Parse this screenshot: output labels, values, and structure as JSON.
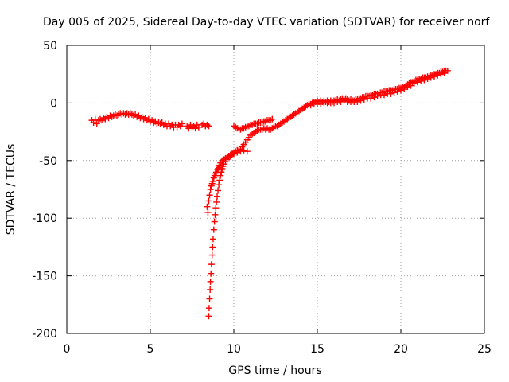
{
  "chart_data": {
    "type": "scatter",
    "title": "Day 005 of 2025, Sidereal Day-to-day VTEC variation (SDTVAR) for receiver norf",
    "xlabel": "GPS time / hours",
    "ylabel": "SDTVAR / TECUs",
    "xlim": [
      0,
      25
    ],
    "ylim": [
      -200,
      50
    ],
    "xticks": [
      0,
      5,
      10,
      15,
      20,
      25
    ],
    "yticks": [
      -200,
      -150,
      -100,
      -50,
      0,
      50
    ],
    "xtick_labels": [
      "0",
      "5",
      "10",
      "15",
      "20",
      "25"
    ],
    "ytick_labels": [
      "-200",
      "-150",
      "-100",
      "-50",
      "0",
      "50"
    ],
    "grid": true,
    "marker": "+",
    "color": "#ff0000",
    "series": [
      {
        "name": "SDTVAR",
        "points": [
          [
            1.5,
            -15
          ],
          [
            1.6,
            -17
          ],
          [
            1.7,
            -14
          ],
          [
            1.8,
            -18
          ],
          [
            1.9,
            -15
          ],
          [
            2.0,
            -14
          ],
          [
            2.1,
            -15
          ],
          [
            2.2,
            -13
          ],
          [
            2.3,
            -14
          ],
          [
            2.4,
            -12
          ],
          [
            2.5,
            -13
          ],
          [
            2.6,
            -11
          ],
          [
            2.7,
            -12
          ],
          [
            2.8,
            -11
          ],
          [
            2.9,
            -10
          ],
          [
            3.0,
            -11
          ],
          [
            3.1,
            -10
          ],
          [
            3.2,
            -9
          ],
          [
            3.3,
            -10
          ],
          [
            3.4,
            -9
          ],
          [
            3.5,
            -10
          ],
          [
            3.6,
            -9
          ],
          [
            3.7,
            -10
          ],
          [
            3.8,
            -9
          ],
          [
            3.9,
            -10
          ],
          [
            4.0,
            -11
          ],
          [
            4.1,
            -10
          ],
          [
            4.2,
            -12
          ],
          [
            4.3,
            -11
          ],
          [
            4.4,
            -13
          ],
          [
            4.5,
            -12
          ],
          [
            4.6,
            -14
          ],
          [
            4.7,
            -13
          ],
          [
            4.8,
            -15
          ],
          [
            4.9,
            -14
          ],
          [
            5.0,
            -16
          ],
          [
            5.1,
            -15
          ],
          [
            5.2,
            -17
          ],
          [
            5.3,
            -16
          ],
          [
            5.4,
            -18
          ],
          [
            5.5,
            -17
          ],
          [
            5.6,
            -18
          ],
          [
            5.7,
            -17
          ],
          [
            5.8,
            -19
          ],
          [
            5.9,
            -18
          ],
          [
            6.0,
            -20
          ],
          [
            6.1,
            -18
          ],
          [
            6.2,
            -20
          ],
          [
            6.3,
            -19
          ],
          [
            6.4,
            -21
          ],
          [
            6.5,
            -19
          ],
          [
            6.6,
            -21
          ],
          [
            6.7,
            -19
          ],
          [
            6.8,
            -20
          ],
          [
            6.9,
            -18
          ],
          [
            7.2,
            -20
          ],
          [
            7.3,
            -22
          ],
          [
            7.4,
            -19
          ],
          [
            7.5,
            -21
          ],
          [
            7.6,
            -20
          ],
          [
            7.7,
            -22
          ],
          [
            7.8,
            -19
          ],
          [
            7.9,
            -21
          ],
          [
            8.1,
            -19
          ],
          [
            8.2,
            -18
          ],
          [
            8.3,
            -20
          ],
          [
            8.4,
            -19
          ],
          [
            8.5,
            -20
          ],
          [
            8.4,
            -90
          ],
          [
            8.45,
            -95
          ],
          [
            8.5,
            -85
          ],
          [
            8.55,
            -80
          ],
          [
            8.6,
            -75
          ],
          [
            8.65,
            -72
          ],
          [
            8.7,
            -70
          ],
          [
            8.75,
            -68
          ],
          [
            8.8,
            -65
          ],
          [
            8.85,
            -63
          ],
          [
            8.9,
            -61
          ],
          [
            8.95,
            -60
          ],
          [
            9.0,
            -58
          ],
          [
            9.05,
            -57
          ],
          [
            9.1,
            -56
          ],
          [
            9.15,
            -54
          ],
          [
            9.2,
            -52
          ],
          [
            9.3,
            -50
          ],
          [
            9.4,
            -49
          ],
          [
            9.5,
            -48
          ],
          [
            9.6,
            -47
          ],
          [
            9.7,
            -46
          ],
          [
            9.8,
            -45
          ],
          [
            9.9,
            -44
          ],
          [
            10.0,
            -43
          ],
          [
            10.1,
            -42
          ],
          [
            10.2,
            -41
          ],
          [
            10.3,
            -41
          ],
          [
            10.4,
            -40
          ],
          [
            10.5,
            -38
          ],
          [
            10.6,
            -36
          ],
          [
            10.7,
            -34
          ],
          [
            10.8,
            -32
          ],
          [
            10.9,
            -30
          ],
          [
            11.0,
            -28
          ],
          [
            11.1,
            -27
          ],
          [
            11.2,
            -26
          ],
          [
            11.3,
            -25
          ],
          [
            11.4,
            -24
          ],
          [
            11.5,
            -23
          ],
          [
            11.6,
            -23
          ],
          [
            11.7,
            -23
          ],
          [
            11.8,
            -22
          ],
          [
            11.9,
            -23
          ],
          [
            12.0,
            -22
          ],
          [
            12.1,
            -23
          ],
          [
            12.2,
            -23
          ],
          [
            12.3,
            -22
          ],
          [
            8.5,
            -185
          ],
          [
            8.52,
            -178
          ],
          [
            8.55,
            -170
          ],
          [
            8.58,
            -162
          ],
          [
            8.6,
            -155
          ],
          [
            8.63,
            -148
          ],
          [
            8.66,
            -140
          ],
          [
            8.7,
            -132
          ],
          [
            8.73,
            -125
          ],
          [
            8.76,
            -118
          ],
          [
            8.8,
            -110
          ],
          [
            8.84,
            -103
          ],
          [
            8.88,
            -97
          ],
          [
            8.92,
            -91
          ],
          [
            8.96,
            -86
          ],
          [
            9.0,
            -81
          ],
          [
            9.05,
            -76
          ],
          [
            9.1,
            -71
          ],
          [
            9.15,
            -67
          ],
          [
            9.2,
            -63
          ],
          [
            9.25,
            -60
          ],
          [
            9.3,
            -57
          ],
          [
            9.35,
            -55
          ],
          [
            9.4,
            -53
          ],
          [
            9.5,
            -51
          ],
          [
            9.6,
            -49
          ],
          [
            9.7,
            -47
          ],
          [
            9.8,
            -46
          ],
          [
            9.9,
            -45
          ],
          [
            10.0,
            -44
          ],
          [
            10.2,
            -43
          ],
          [
            10.4,
            -42
          ],
          [
            10.6,
            -41
          ],
          [
            10.8,
            -42
          ],
          [
            10.0,
            -20
          ],
          [
            10.1,
            -21
          ],
          [
            10.2,
            -22
          ],
          [
            10.3,
            -22
          ],
          [
            10.4,
            -23
          ],
          [
            10.5,
            -22
          ],
          [
            10.6,
            -22
          ],
          [
            10.7,
            -21
          ],
          [
            10.8,
            -20
          ],
          [
            10.9,
            -20
          ],
          [
            11.0,
            -19
          ],
          [
            11.1,
            -19
          ],
          [
            11.2,
            -18
          ],
          [
            11.3,
            -18
          ],
          [
            11.4,
            -18
          ],
          [
            11.5,
            -17
          ],
          [
            11.6,
            -17
          ],
          [
            11.7,
            -17
          ],
          [
            11.8,
            -16
          ],
          [
            11.9,
            -16
          ],
          [
            12.0,
            -15
          ],
          [
            12.1,
            -15
          ],
          [
            12.2,
            -15
          ],
          [
            12.3,
            -14
          ],
          [
            12.4,
            -21
          ],
          [
            12.5,
            -20
          ],
          [
            12.6,
            -20
          ],
          [
            12.7,
            -19
          ],
          [
            12.8,
            -18
          ],
          [
            12.9,
            -17
          ],
          [
            13.0,
            -16
          ],
          [
            13.1,
            -15
          ],
          [
            13.2,
            -14
          ],
          [
            13.3,
            -13
          ],
          [
            13.4,
            -12
          ],
          [
            13.5,
            -11
          ],
          [
            13.6,
            -10
          ],
          [
            13.7,
            -9
          ],
          [
            13.8,
            -8
          ],
          [
            13.9,
            -7
          ],
          [
            14.0,
            -6
          ],
          [
            14.1,
            -5
          ],
          [
            14.2,
            -4
          ],
          [
            14.3,
            -3
          ],
          [
            14.4,
            -2
          ],
          [
            14.5,
            -1
          ],
          [
            14.6,
            -1
          ],
          [
            14.7,
            0
          ],
          [
            14.8,
            1
          ],
          [
            14.9,
            1
          ],
          [
            15.0,
            2
          ],
          [
            15.1,
            1
          ],
          [
            15.2,
            2
          ],
          [
            15.3,
            1
          ],
          [
            15.4,
            2
          ],
          [
            15.5,
            1
          ],
          [
            15.6,
            2
          ],
          [
            15.7,
            1
          ],
          [
            15.8,
            2
          ],
          [
            15.9,
            1
          ],
          [
            16.0,
            2
          ],
          [
            16.1,
            2
          ],
          [
            16.2,
            3
          ],
          [
            16.3,
            2
          ],
          [
            16.4,
            3
          ],
          [
            16.5,
            4
          ],
          [
            16.6,
            3
          ],
          [
            16.7,
            4
          ],
          [
            16.8,
            3
          ],
          [
            16.9,
            2
          ],
          [
            17.0,
            3
          ],
          [
            17.1,
            2
          ],
          [
            17.2,
            2
          ],
          [
            17.3,
            3
          ],
          [
            17.4,
            3
          ],
          [
            17.5,
            4
          ],
          [
            17.6,
            4
          ],
          [
            17.7,
            5
          ],
          [
            17.8,
            5
          ],
          [
            17.9,
            6
          ],
          [
            18.0,
            6
          ],
          [
            18.1,
            6
          ],
          [
            18.2,
            7
          ],
          [
            18.3,
            7
          ],
          [
            18.4,
            8
          ],
          [
            18.5,
            8
          ],
          [
            18.6,
            8
          ],
          [
            18.7,
            9
          ],
          [
            18.8,
            9
          ],
          [
            18.9,
            9
          ],
          [
            19.0,
            10
          ],
          [
            19.1,
            10
          ],
          [
            19.2,
            10
          ],
          [
            19.3,
            11
          ],
          [
            19.4,
            11
          ],
          [
            19.5,
            11
          ],
          [
            19.6,
            12
          ],
          [
            19.7,
            12
          ],
          [
            19.8,
            12
          ],
          [
            19.9,
            13
          ],
          [
            20.0,
            13
          ],
          [
            20.1,
            14
          ],
          [
            20.2,
            14
          ],
          [
            20.3,
            15
          ],
          [
            20.4,
            16
          ],
          [
            20.5,
            17
          ],
          [
            20.6,
            18
          ],
          [
            20.7,
            18
          ],
          [
            20.8,
            19
          ],
          [
            20.9,
            20
          ],
          [
            21.0,
            20
          ],
          [
            21.1,
            21
          ],
          [
            21.2,
            21
          ],
          [
            21.3,
            22
          ],
          [
            21.4,
            22
          ],
          [
            21.5,
            22
          ],
          [
            21.6,
            23
          ],
          [
            21.7,
            23
          ],
          [
            21.8,
            24
          ],
          [
            21.9,
            24
          ],
          [
            22.0,
            25
          ],
          [
            22.1,
            25
          ],
          [
            22.2,
            26
          ],
          [
            22.3,
            26
          ],
          [
            22.4,
            27
          ],
          [
            22.5,
            27
          ],
          [
            22.6,
            28
          ],
          [
            22.7,
            28
          ],
          [
            22.8,
            28
          ],
          [
            14.6,
            -2
          ],
          [
            14.8,
            -1
          ],
          [
            15.0,
            -1
          ],
          [
            15.2,
            -1
          ],
          [
            15.4,
            0
          ],
          [
            15.6,
            0
          ],
          [
            15.8,
            0
          ],
          [
            16.0,
            0
          ],
          [
            16.2,
            1
          ],
          [
            16.4,
            1
          ],
          [
            16.6,
            2
          ],
          [
            16.8,
            1
          ],
          [
            17.0,
            1
          ],
          [
            17.2,
            1
          ],
          [
            17.4,
            1
          ],
          [
            17.6,
            2
          ],
          [
            17.8,
            3
          ],
          [
            18.0,
            4
          ],
          [
            18.2,
            4
          ],
          [
            18.4,
            5
          ],
          [
            18.6,
            6
          ],
          [
            18.8,
            7
          ],
          [
            19.0,
            7
          ],
          [
            19.2,
            8
          ],
          [
            19.4,
            8
          ],
          [
            19.6,
            9
          ],
          [
            19.8,
            10
          ],
          [
            20.0,
            11
          ],
          [
            20.2,
            12
          ],
          [
            20.4,
            14
          ],
          [
            20.6,
            15
          ],
          [
            20.8,
            17
          ],
          [
            21.0,
            18
          ],
          [
            21.2,
            19
          ],
          [
            21.4,
            20
          ],
          [
            21.6,
            21
          ],
          [
            21.8,
            22
          ],
          [
            22.0,
            23
          ],
          [
            22.2,
            24
          ],
          [
            22.4,
            25
          ],
          [
            22.6,
            26
          ]
        ]
      }
    ]
  }
}
